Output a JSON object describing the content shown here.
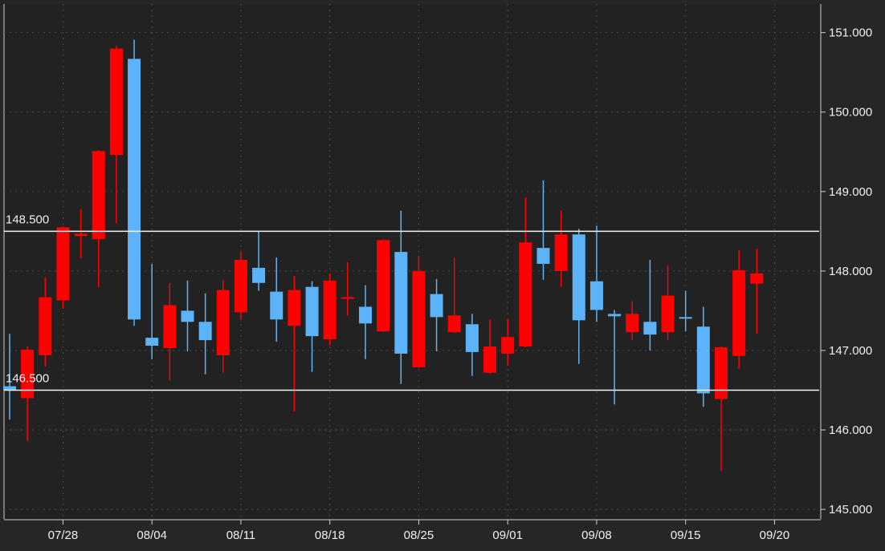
{
  "chart_data": {
    "type": "candlestick",
    "categories": [
      null,
      null,
      null,
      "07/28",
      null,
      null,
      null,
      null,
      "08/04",
      null,
      null,
      null,
      null,
      "08/11",
      null,
      null,
      null,
      null,
      "08/18",
      null,
      null,
      null,
      null,
      "08/25",
      null,
      null,
      null,
      null,
      "09/01",
      null,
      null,
      null,
      null,
      "09/08",
      null,
      null,
      null,
      null,
      "09/15",
      null,
      null,
      null,
      null,
      "09/20"
    ],
    "open": [
      146.55,
      146.4,
      146.94,
      147.63,
      148.44,
      148.4,
      149.46,
      150.67,
      147.16,
      147.03,
      147.5,
      147.36,
      146.94,
      147.48,
      148.04,
      147.74,
      147.31,
      147.8,
      147.14,
      147.66,
      147.55,
      147.24,
      148.24,
      146.79,
      147.71,
      147.23,
      147.33,
      146.72,
      146.96,
      147.05,
      148.29,
      148.0,
      148.46,
      147.87,
      147.46,
      147.23,
      147.36,
      147.23,
      147.42,
      147.3,
      146.39,
      146.93,
      147.84,
      null
    ],
    "high": [
      147.21,
      147.05,
      147.92,
      148.56,
      148.78,
      149.52,
      150.83,
      150.91,
      148.09,
      147.85,
      147.88,
      147.72,
      147.89,
      148.25,
      148.5,
      148.17,
      147.94,
      147.87,
      147.97,
      148.11,
      147.82,
      148.4,
      148.76,
      148.19,
      147.9,
      148.17,
      147.46,
      147.39,
      147.4,
      148.93,
      149.14,
      148.76,
      148.53,
      148.57,
      147.51,
      147.62,
      148.14,
      148.07,
      147.75,
      147.55,
      147.05,
      148.26,
      148.28,
      null
    ],
    "low": [
      146.13,
      145.86,
      146.8,
      147.53,
      148.16,
      147.8,
      148.6,
      147.31,
      146.89,
      146.62,
      146.99,
      146.7,
      146.72,
      147.39,
      147.75,
      147.11,
      146.23,
      146.73,
      147.06,
      147.44,
      146.89,
      147.23,
      146.58,
      146.78,
      146.99,
      147.22,
      146.68,
      146.71,
      146.81,
      147.04,
      147.89,
      147.8,
      146.83,
      147.36,
      146.32,
      147.13,
      147.0,
      147.13,
      147.24,
      146.29,
      145.48,
      146.77,
      147.21,
      null
    ],
    "close": [
      146.5,
      147.01,
      147.67,
      148.55,
      148.47,
      149.51,
      150.8,
      147.39,
      147.06,
      147.57,
      147.36,
      147.13,
      147.76,
      148.14,
      147.85,
      147.39,
      147.76,
      147.18,
      147.88,
      147.67,
      147.34,
      148.39,
      146.96,
      148.0,
      147.42,
      147.44,
      146.98,
      147.05,
      147.17,
      148.36,
      148.09,
      148.46,
      147.38,
      147.51,
      147.43,
      147.46,
      147.2,
      147.69,
      147.4,
      146.46,
      147.04,
      148.01,
      147.97,
      null
    ],
    "up_color": "#ff0000",
    "down_color": "#5cb3f7",
    "ylim": [
      144.88,
      151.36
    ],
    "yticks": [
      {
        "value": 145,
        "label": "145.000"
      },
      {
        "value": 146,
        "label": "146.000"
      },
      {
        "value": 147,
        "label": "147.000"
      },
      {
        "value": 148,
        "label": "148.000"
      },
      {
        "value": 149,
        "label": "149.000"
      },
      {
        "value": 150,
        "label": "150.000"
      },
      {
        "value": 151,
        "label": "151.000"
      }
    ],
    "grid": true,
    "hlines": [
      {
        "value": 148.5,
        "label": "148.500"
      },
      {
        "value": 146.5,
        "label": "146.500"
      }
    ]
  }
}
